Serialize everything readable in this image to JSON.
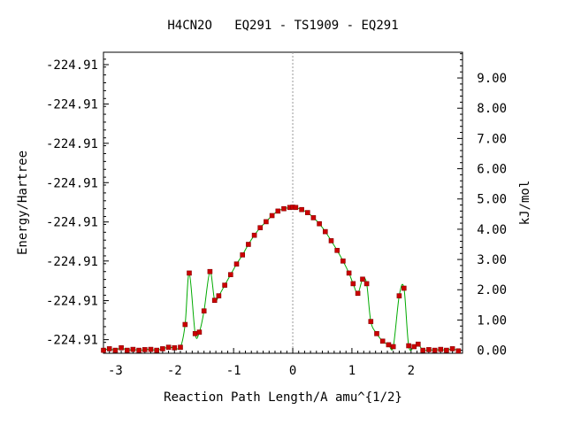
{
  "chart_data": {
    "type": "line",
    "title": "H4CN2O   EQ291 - TS1909 - EQ291",
    "xlabel": "Reaction Path Length/A amu^{1/2}",
    "ylabel_left": "Energy/Hartree",
    "ylabel_right": "kJ/mol",
    "xlim": [
      -3.2,
      2.87
    ],
    "ylim_right": [
      -0.1,
      9.85
    ],
    "x_ticks": [
      "-3",
      "-2",
      "-1",
      "0",
      "1",
      "2"
    ],
    "x_tick_values": [
      -3,
      -2,
      -1,
      0,
      1,
      2
    ],
    "left_tick_labels": [
      "-224.91",
      "-224.91",
      "-224.91",
      "-224.91",
      "-224.91",
      "-224.91",
      "-224.91",
      "-224.91"
    ],
    "left_tick_positions_kjmol": [
      0.35,
      1.64,
      2.95,
      4.24,
      5.54,
      6.84,
      8.14,
      9.44
    ],
    "right_tick_labels": [
      "0.00",
      "1.00",
      "2.00",
      "3.00",
      "4.00",
      "5.00",
      "6.00",
      "7.00",
      "8.00",
      "9.00"
    ],
    "right_tick_values": [
      0,
      1,
      2,
      3,
      4,
      5,
      6,
      7,
      8,
      9
    ],
    "grid": false,
    "vertical_reference_line_x": 0,
    "series": [
      {
        "color": "#00aa00",
        "marker_color": "#cc0000",
        "x": [
          -3.2,
          -3.1,
          -3.0,
          -2.9,
          -2.8,
          -2.7,
          -2.6,
          -2.5,
          -2.4,
          -2.3,
          -2.2,
          -2.1,
          -2.0,
          -1.9,
          -1.82,
          -1.75,
          -1.65,
          -1.58,
          -1.5,
          -1.4,
          -1.32,
          -1.25,
          -1.15,
          -1.05,
          -0.95,
          -0.85,
          -0.75,
          -0.65,
          -0.55,
          -0.45,
          -0.35,
          -0.25,
          -0.15,
          -0.05,
          0.0,
          0.05,
          0.15,
          0.25,
          0.35,
          0.45,
          0.55,
          0.65,
          0.75,
          0.85,
          0.95,
          1.02,
          1.1,
          1.18,
          1.25,
          1.32,
          1.42,
          1.52,
          1.62,
          1.7,
          1.8,
          1.88,
          1.96,
          2.05,
          2.12,
          2.2,
          2.3,
          2.4,
          2.5,
          2.6,
          2.7,
          2.8
        ],
        "y": [
          0.0,
          0.05,
          0.0,
          0.08,
          0.0,
          0.03,
          0.0,
          0.02,
          0.03,
          0.0,
          0.05,
          0.1,
          0.08,
          0.1,
          0.85,
          2.55,
          0.55,
          0.6,
          1.3,
          2.6,
          1.65,
          1.8,
          2.15,
          2.5,
          2.85,
          3.15,
          3.5,
          3.8,
          4.05,
          4.25,
          4.45,
          4.6,
          4.68,
          4.72,
          4.73,
          4.72,
          4.65,
          4.55,
          4.38,
          4.18,
          3.92,
          3.62,
          3.3,
          2.95,
          2.55,
          2.2,
          1.88,
          2.35,
          2.2,
          0.95,
          0.55,
          0.3,
          0.18,
          0.12,
          1.8,
          2.05,
          0.15,
          0.12,
          0.2,
          0.0,
          0.02,
          0.0,
          0.03,
          0.0,
          0.05,
          -0.02
        ]
      }
    ]
  }
}
